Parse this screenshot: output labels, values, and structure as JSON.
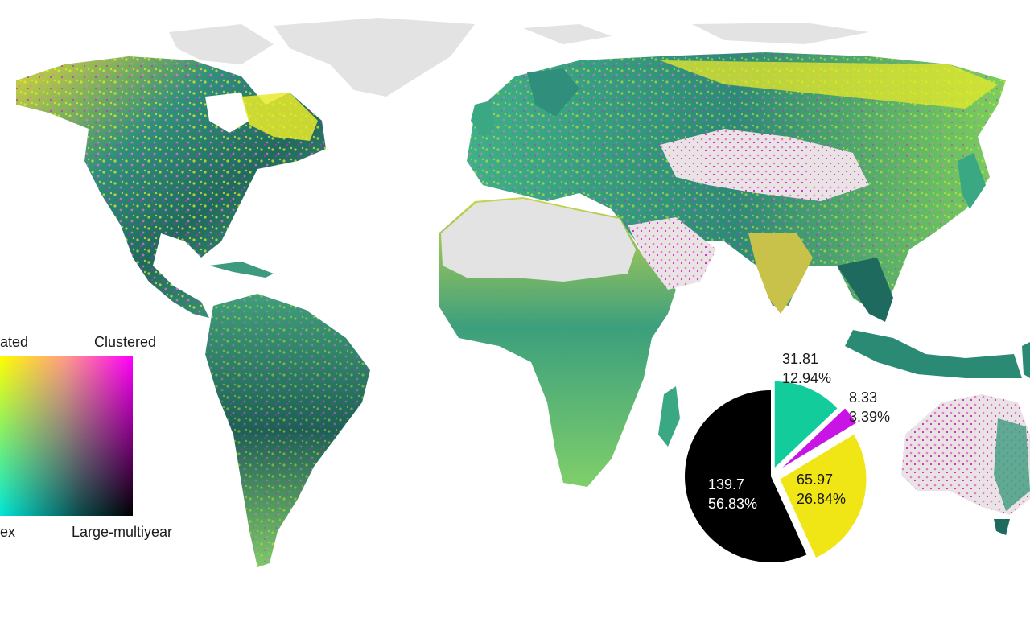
{
  "map": {
    "landmass_colors": {
      "ice_and_barren": "#e3e3e3",
      "dark_teal": "#1e5a52",
      "teal": "#2aa389",
      "green": "#7fd25a",
      "yellow": "#e8ea2a",
      "pink": "#e77bc0",
      "magenta": "#c728c4",
      "black": "#101820"
    }
  },
  "legend": {
    "top_left_label": "ated",
    "top_right_label": "Clustered",
    "bottom_left_label": "ex",
    "bottom_right_label": "Large-multiyear",
    "corner_colors": {
      "top_left": "#ffff00",
      "top_right": "#ff00ff",
      "bottom_left": "#00e5d9",
      "bottom_right": "#000000"
    }
  },
  "chart_data": {
    "type": "pie",
    "slices": [
      {
        "value": 31.81,
        "percent_label": "12.94%",
        "value_label": "31.81",
        "color": "#12cc9c"
      },
      {
        "value": 8.33,
        "percent_label": "3.39%",
        "value_label": "8.33",
        "color": "#c815e6"
      },
      {
        "value": 65.97,
        "percent_label": "26.84%",
        "value_label": "65.97",
        "color": "#f0e515"
      },
      {
        "value": 139.7,
        "percent_label": "56.83%",
        "value_label": "139.7",
        "color": "#000000"
      }
    ]
  }
}
